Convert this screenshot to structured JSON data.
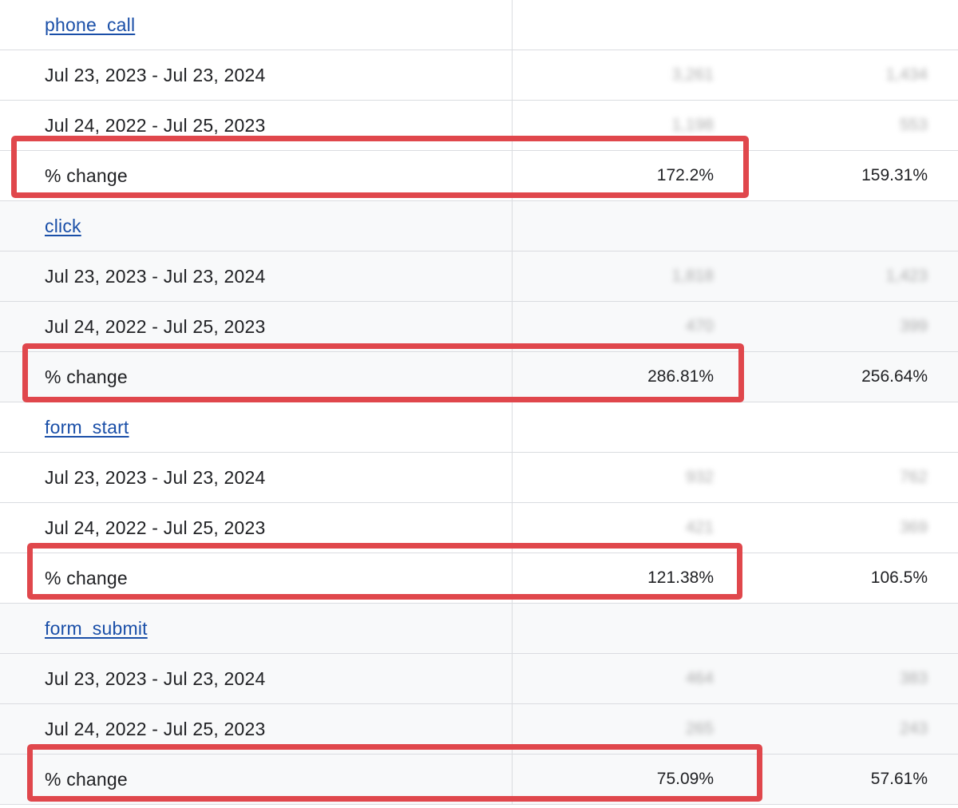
{
  "groups": [
    {
      "event": "phone_call",
      "rows": [
        {
          "label": "Jul 23, 2023 - Jul 23, 2024",
          "v1": "3,261",
          "v2": "1,434"
        },
        {
          "label": "Jul 24, 2022 - Jul 25, 2023",
          "v1": "1,198",
          "v2": "553"
        },
        {
          "label": "% change",
          "v1": "172.2%",
          "v2": "159.31%"
        }
      ]
    },
    {
      "event": "click",
      "rows": [
        {
          "label": "Jul 23, 2023 - Jul 23, 2024",
          "v1": "1,818",
          "v2": "1,423"
        },
        {
          "label": "Jul 24, 2022 - Jul 25, 2023",
          "v1": "470",
          "v2": "399"
        },
        {
          "label": "% change",
          "v1": "286.81%",
          "v2": "256.64%"
        }
      ]
    },
    {
      "event": "form_start",
      "rows": [
        {
          "label": "Jul 23, 2023 - Jul 23, 2024",
          "v1": "932",
          "v2": "762"
        },
        {
          "label": "Jul 24, 2022 - Jul 25, 2023",
          "v1": "421",
          "v2": "369"
        },
        {
          "label": "% change",
          "v1": "121.38%",
          "v2": "106.5%"
        }
      ]
    },
    {
      "event": "form_submit",
      "rows": [
        {
          "label": "Jul 23, 2023 - Jul 23, 2024",
          "v1": "464",
          "v2": "383"
        },
        {
          "label": "Jul 24, 2022 - Jul 25, 2023",
          "v1": "265",
          "v2": "243"
        },
        {
          "label": "% change",
          "v1": "75.09%",
          "v2": "57.61%"
        }
      ]
    }
  ],
  "colors": {
    "link": "#1a4fa8",
    "highlight_box": "#e0474c",
    "row_shade": "#f8f9fa",
    "divider": "#dadce0"
  }
}
